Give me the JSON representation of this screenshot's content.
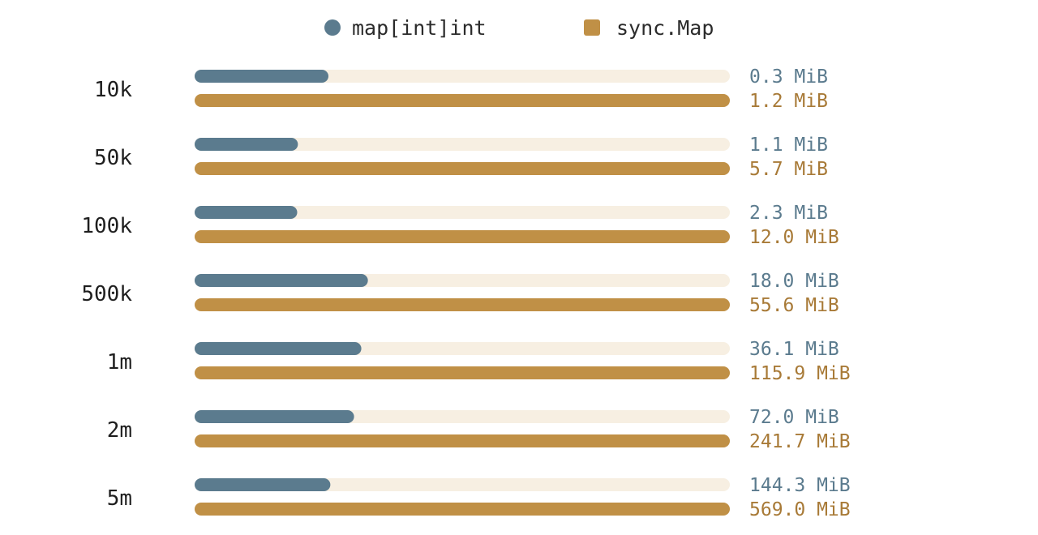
{
  "chart_data": {
    "type": "bar",
    "orientation": "horizontal",
    "categories": [
      "10k",
      "50k",
      "100k",
      "500k",
      "1m",
      "2m",
      "5m"
    ],
    "unit": "MiB",
    "series": [
      {
        "name": "map[int]int",
        "color": "#5b7b8e",
        "marker": "circle",
        "values": [
          0.3,
          1.1,
          2.3,
          18.0,
          36.1,
          72.0,
          144.3
        ],
        "labels": [
          "0.3 MiB",
          "1.1 MiB",
          "2.3 MiB",
          "18.0 MiB",
          "36.1 MiB",
          "72.0 MiB",
          "144.3 MiB"
        ]
      },
      {
        "name": "sync.Map",
        "color": "#c09046",
        "label_color": "#a87a37",
        "marker": "square",
        "values": [
          1.2,
          5.7,
          12.0,
          55.6,
          115.9,
          241.7,
          569.0
        ],
        "labels": [
          "1.2 MiB",
          "5.7 MiB",
          "12.0 MiB",
          "55.6 MiB",
          "115.9 MiB",
          "241.7 MiB",
          "569.0 MiB"
        ]
      }
    ],
    "track_color": "#f7efe2",
    "scale": "per-category (sync.Map fills the track)",
    "legend_position": "top-center",
    "grid": false
  }
}
